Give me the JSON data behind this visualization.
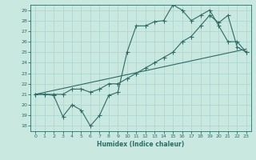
{
  "xlabel": "Humidex (Indice chaleur)",
  "xlim": [
    -0.5,
    23.5
  ],
  "ylim": [
    17.5,
    29.5
  ],
  "xticks": [
    0,
    1,
    2,
    3,
    4,
    5,
    6,
    7,
    8,
    9,
    10,
    11,
    12,
    13,
    14,
    15,
    16,
    17,
    18,
    19,
    20,
    21,
    22,
    23
  ],
  "yticks": [
    18,
    19,
    20,
    21,
    22,
    23,
    24,
    25,
    26,
    27,
    28,
    29
  ],
  "bg_color": "#c8e8e0",
  "grid_color": "#b0d8d0",
  "line_color": "#2e6b65",
  "line1_x": [
    0,
    1,
    2,
    3,
    4,
    5,
    6,
    7,
    8,
    9,
    10,
    11,
    12,
    13,
    14,
    15,
    16,
    17,
    18,
    19,
    20,
    21,
    22,
    23
  ],
  "line1_y": [
    21,
    21,
    20.9,
    18.9,
    20,
    19.5,
    18,
    19,
    20.9,
    21.2,
    25,
    27.5,
    27.5,
    27.9,
    28.0,
    29.5,
    29.0,
    28.0,
    28.5,
    29.0,
    27.5,
    26.0,
    26.0,
    25.0
  ],
  "line2_x": [
    0,
    1,
    2,
    3,
    4,
    5,
    6,
    7,
    8,
    9,
    10,
    11,
    12,
    13,
    14,
    15,
    16,
    17,
    18,
    19,
    20,
    21,
    22,
    23
  ],
  "line2_y": [
    21,
    21,
    21,
    21,
    21.5,
    21.5,
    21.2,
    21.5,
    22,
    22,
    22.5,
    23,
    23.5,
    24,
    24.5,
    25.0,
    26.0,
    26.5,
    27.5,
    28.5,
    27.8,
    28.5,
    25.5,
    25.0
  ],
  "line3_x": [
    0,
    23
  ],
  "line3_y": [
    21.0,
    25.3
  ]
}
